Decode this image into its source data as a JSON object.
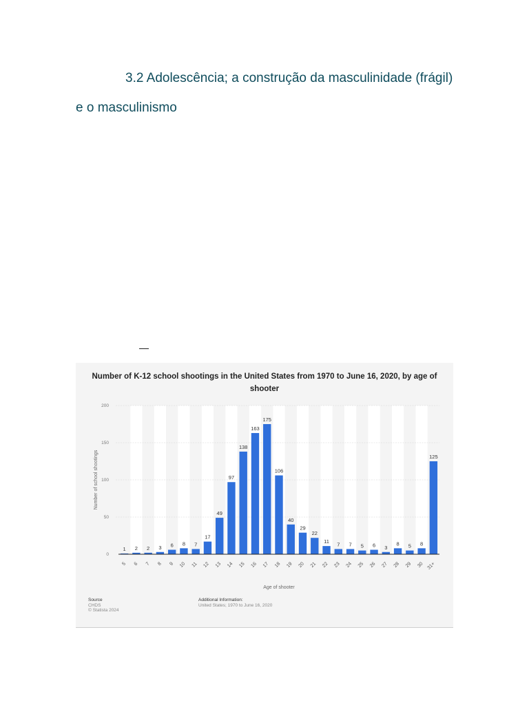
{
  "document": {
    "heading": "3.2 Adolescência; a construção da masculinidade (frágil) e o masculinismo",
    "dash": "—"
  },
  "chart_data": {
    "type": "bar",
    "title": "Number of K-12 school shootings in the United States from 1970 to June 16, 2020, by age of shooter",
    "xlabel": "Age of shooter",
    "ylabel": "Number of school shootings",
    "ylim": [
      0,
      200
    ],
    "yticks": [
      0,
      50,
      100,
      150,
      200
    ],
    "grid": true,
    "bar_color": "#2f6fdb",
    "categories": [
      "5",
      "6",
      "7",
      "8",
      "9",
      "10",
      "11",
      "12",
      "13",
      "14",
      "15",
      "16",
      "17",
      "18",
      "19",
      "20",
      "21",
      "22",
      "23",
      "24",
      "25",
      "26",
      "27",
      "28",
      "29",
      "30",
      "31+"
    ],
    "values": [
      1,
      2,
      2,
      3,
      6,
      8,
      7,
      17,
      49,
      97,
      138,
      163,
      175,
      106,
      40,
      29,
      22,
      11,
      7,
      7,
      5,
      6,
      3,
      8,
      5,
      8,
      125
    ]
  },
  "footer": {
    "source_heading": "Source",
    "source_lines": [
      "CHDS",
      "© Statista 2024"
    ],
    "info_heading": "Additional Information:",
    "info_text": "United States; 1970 to June 16, 2020"
  }
}
